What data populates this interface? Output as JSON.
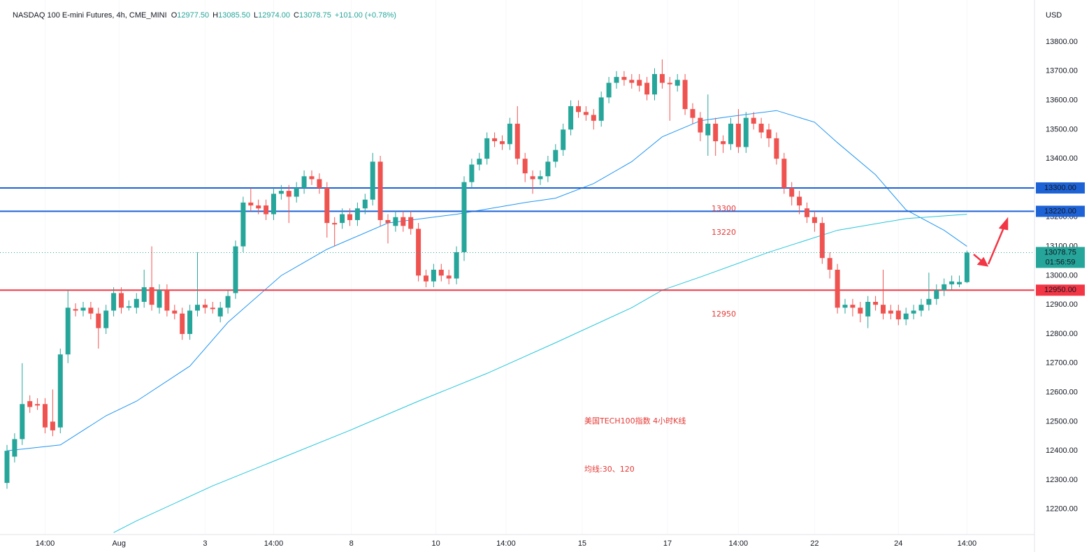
{
  "chart_data": {
    "type": "candlestick",
    "header": {
      "name": "NASDAQ 100 E-mini Futures, 4h, CME_MINI",
      "ohlc": [
        {
          "key": "O",
          "value": "12977.50"
        },
        {
          "key": "H",
          "value": "13085.50"
        },
        {
          "key": "L",
          "value": "12974.00"
        },
        {
          "key": "C",
          "value": "13078.75"
        }
      ],
      "change": "+101.00 (+0.78%)"
    },
    "currency": "USD",
    "up_color": "#26a69a",
    "down_color": "#ef5350",
    "open": [
      12290,
      12380,
      12440,
      12570,
      12560,
      12560,
      12500,
      12480,
      12730,
      12885,
      12880,
      12890,
      12870,
      12820,
      12880,
      12940,
      12890,
      12890,
      12910,
      12960,
      12890,
      12950,
      12880,
      12870,
      12800,
      12880,
      12900,
      12890,
      12860,
      12890,
      12940,
      13100,
      13250,
      13240,
      13240,
      13210,
      13280,
      13290,
      13270,
      13300,
      13340,
      13330,
      13300,
      13180,
      13180,
      13210,
      13190,
      13230,
      13260,
      13390,
      13190,
      13170,
      13200,
      13200,
      13160,
      13000,
      12980,
      13020,
      13000,
      12990,
      13080,
      13320,
      13380,
      13400,
      13470,
      13460,
      13450,
      13520,
      13400,
      13340,
      13330,
      13340,
      13390,
      13430,
      13500,
      13580,
      13560,
      13550,
      13530,
      13610,
      13660,
      13680,
      13670,
      13670,
      13660,
      13620,
      13690,
      13660,
      13650,
      13670,
      13570,
      13540,
      13480,
      13520,
      13460,
      13450,
      13520,
      13440,
      13540,
      13520,
      13500,
      13470,
      13400,
      13300,
      13270,
      13230,
      13200,
      13180,
      13060,
      13020,
      12890,
      12900,
      12890,
      12860,
      12910,
      12900,
      12880,
      12880,
      12850,
      12870,
      12880,
      12900,
      12920,
      12950,
      12970,
      12970,
      12977.5
    ],
    "high": [
      12420,
      12460,
      12700,
      12590,
      12580,
      12580,
      12610,
      12750,
      12950,
      12905,
      12910,
      12910,
      12890,
      12900,
      12960,
      12960,
      12915,
      12940,
      13020,
      13100,
      12970,
      12970,
      12900,
      12890,
      12900,
      13080,
      12920,
      12910,
      12910,
      12950,
      13120,
      13270,
      13300,
      13260,
      13260,
      13300,
      13310,
      13310,
      13320,
      13360,
      13360,
      13350,
      13320,
      13200,
      13230,
      13230,
      13250,
      13280,
      13420,
      13410,
      13210,
      13220,
      13220,
      13220,
      13180,
      13020,
      13040,
      13040,
      13020,
      13100,
      13340,
      13400,
      13420,
      13490,
      13490,
      13480,
      13540,
      13580,
      13420,
      13360,
      13360,
      13410,
      13450,
      13520,
      13600,
      13600,
      13580,
      13570,
      13630,
      13680,
      13700,
      13700,
      13690,
      13690,
      13680,
      13710,
      13740,
      13680,
      13690,
      13690,
      13590,
      13560,
      13620,
      13540,
      13480,
      13540,
      13570,
      13560,
      13560,
      13540,
      13520,
      13490,
      13420,
      13320,
      13290,
      13250,
      13220,
      13200,
      13080,
      13040,
      12920,
      12920,
      12910,
      12930,
      12930,
      13020,
      12900,
      12900,
      12890,
      12900,
      12920,
      13010,
      12970,
      12990,
      13000,
      13000,
      13085.5
    ],
    "low": [
      12270,
      12360,
      12420,
      12530,
      12540,
      12460,
      12450,
      12460,
      12700,
      12860,
      12860,
      12850,
      12750,
      12800,
      12860,
      12870,
      12880,
      12870,
      12890,
      12880,
      12870,
      12860,
      12850,
      12780,
      12780,
      12860,
      12870,
      12870,
      12840,
      12870,
      12920,
      13080,
      13220,
      13210,
      13190,
      13190,
      13260,
      13180,
      13250,
      13280,
      13310,
      13280,
      13130,
      13100,
      13160,
      13170,
      13170,
      13210,
      13240,
      13170,
      13110,
      13150,
      13150,
      13140,
      12980,
      12960,
      12960,
      12980,
      12970,
      12970,
      13050,
      13300,
      13360,
      13380,
      13440,
      13430,
      13430,
      13380,
      13320,
      13280,
      13310,
      13320,
      13370,
      13410,
      13480,
      13540,
      13530,
      13500,
      13510,
      13590,
      13640,
      13650,
      13640,
      13630,
      13600,
      13600,
      13640,
      13530,
      13630,
      13550,
      13520,
      13460,
      13410,
      13410,
      13420,
      13430,
      13420,
      13420,
      13500,
      13470,
      13440,
      13380,
      13280,
      13240,
      13210,
      13180,
      13150,
      13040,
      12990,
      12870,
      12870,
      12860,
      12840,
      12820,
      12880,
      12850,
      12850,
      12830,
      12830,
      12850,
      12860,
      12880,
      12900,
      12930,
      12950,
      12960,
      12974
    ],
    "close": [
      12400,
      12440,
      12560,
      12550,
      12555,
      12480,
      12470,
      12730,
      12890,
      12880,
      12890,
      12870,
      12820,
      12880,
      12940,
      12890,
      12895,
      12920,
      12960,
      12900,
      12950,
      12880,
      12870,
      12800,
      12880,
      12900,
      12890,
      12885,
      12890,
      12930,
      13100,
      13250,
      13240,
      13230,
      13210,
      13280,
      13290,
      13270,
      13300,
      13340,
      13330,
      13300,
      13180,
      13175,
      13210,
      13190,
      13230,
      13260,
      13390,
      13190,
      13180,
      13200,
      13170,
      13160,
      13000,
      12980,
      13020,
      13000,
      12990,
      13080,
      13320,
      13380,
      13400,
      13470,
      13460,
      13450,
      13520,
      13400,
      13350,
      13330,
      13340,
      13390,
      13430,
      13500,
      13580,
      13560,
      13550,
      13530,
      13610,
      13660,
      13680,
      13670,
      13660,
      13650,
      13620,
      13690,
      13660,
      13655,
      13670,
      13570,
      13540,
      13490,
      13520,
      13460,
      13450,
      13520,
      13440,
      13540,
      13520,
      13490,
      13470,
      13400,
      13300,
      13270,
      13240,
      13200,
      13180,
      13060,
      13020,
      12890,
      12900,
      12890,
      12870,
      12910,
      12900,
      12870,
      12870,
      12850,
      12870,
      12880,
      12900,
      12920,
      12950,
      12970,
      12980,
      12978,
      13078.75
    ],
    "moving_averages": [
      {
        "color": "#2196f3",
        "x": [
          0,
          7,
          13,
          17,
          24,
          29,
          36,
          42,
          50,
          59,
          68,
          72,
          77,
          82,
          86,
          91,
          95,
          101,
          106,
          109,
          114,
          118,
          123,
          126
        ],
        "values": [
          12400,
          12420,
          12520,
          12570,
          12690,
          12840,
          13000,
          13090,
          13180,
          13210,
          13250,
          13265,
          13315,
          13390,
          13475,
          13530,
          13545,
          13565,
          13525,
          13455,
          13345,
          13225,
          13155,
          13100
        ]
      },
      {
        "color": "#26c6da",
        "x": [
          14,
          17,
          27,
          36,
          45,
          54,
          63,
          72,
          82,
          86,
          91,
          100,
          109,
          118,
          126
        ],
        "values": [
          12120,
          12160,
          12280,
          12375,
          12470,
          12570,
          12665,
          12770,
          12890,
          12950,
          12995,
          13080,
          13155,
          13195,
          13210
        ]
      }
    ],
    "levels": [
      {
        "value": 13300,
        "label": "13300.00",
        "color": "#1e63d6"
      },
      {
        "value": 13220,
        "label": "13220.00",
        "color": "#1e63d6"
      },
      {
        "value": 12950,
        "label": "12950.00",
        "color": "#f23645"
      }
    ],
    "last_price": {
      "value": 13078.75,
      "label": "13078.75",
      "countdown": "01:56:59"
    },
    "ylim": [
      12113.3,
      13943.5
    ],
    "yticks": [
      {
        "value": 12200,
        "label": "12200.00"
      },
      {
        "value": 12300,
        "label": "12300.00"
      },
      {
        "value": 12400,
        "label": "12400.00"
      },
      {
        "value": 12500,
        "label": "12500.00"
      },
      {
        "value": 12600,
        "label": "12600.00"
      },
      {
        "value": 12700,
        "label": "12700.00"
      },
      {
        "value": 12800,
        "label": "12800.00"
      },
      {
        "value": 12900,
        "label": "12900.00"
      },
      {
        "value": 13000,
        "label": "13000.00"
      },
      {
        "value": 13100,
        "label": "13100.00"
      },
      {
        "value": 13200,
        "label": "13200.00"
      },
      {
        "value": 13300,
        "label": "13300.00"
      },
      {
        "value": 13400,
        "label": "13400.00"
      },
      {
        "value": 13500,
        "label": "13500.00"
      },
      {
        "value": 13600,
        "label": "13600.00"
      },
      {
        "value": 13700,
        "label": "13700.00"
      },
      {
        "value": 13800,
        "label": "13800.00"
      }
    ],
    "xticks": [
      {
        "value": 5,
        "label": "14:00"
      },
      {
        "value": 14.7,
        "label": "Aug"
      },
      {
        "value": 26,
        "label": "3"
      },
      {
        "value": 35,
        "label": "14:00"
      },
      {
        "value": 45.2,
        "label": "8"
      },
      {
        "value": 56.3,
        "label": "10"
      },
      {
        "value": 65.5,
        "label": "14:00"
      },
      {
        "value": 75.5,
        "label": "15"
      },
      {
        "value": 86.7,
        "label": "17"
      },
      {
        "value": 96,
        "label": "14:00"
      },
      {
        "value": 106,
        "label": "22"
      },
      {
        "value": 117,
        "label": "24"
      },
      {
        "value": 126,
        "label": "14:00"
      }
    ],
    "annotations": [
      "13300",
      "13220",
      "12950",
      "美国TECH100指数 4小时K线",
      "均线:30、120"
    ]
  }
}
